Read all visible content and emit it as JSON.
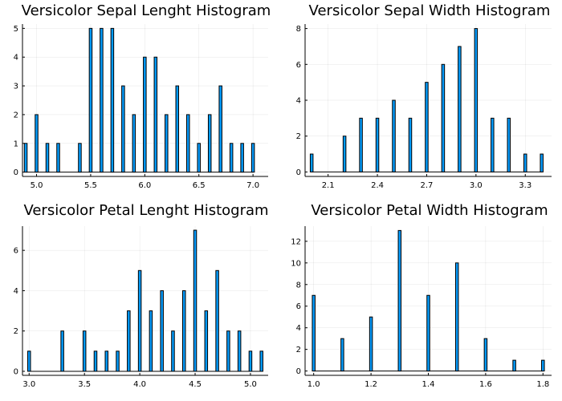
{
  "chart_data": [
    {
      "type": "bar",
      "title": "Versicolor Sepal Lenght Histogram",
      "x": [
        4.9,
        5.0,
        5.1,
        5.2,
        5.4,
        5.5,
        5.6,
        5.7,
        5.8,
        5.9,
        6.0,
        6.1,
        6.2,
        6.3,
        6.4,
        6.5,
        6.6,
        6.7,
        6.8,
        6.9,
        7.0
      ],
      "values": [
        1,
        2,
        1,
        1,
        1,
        5,
        5,
        5,
        3,
        2,
        4,
        4,
        2,
        3,
        2,
        1,
        2,
        3,
        1,
        1,
        1
      ],
      "xlim": [
        4.87,
        7.14
      ],
      "ylim": [
        -0.15,
        5.15
      ],
      "xticks": [
        5.0,
        5.5,
        6.0,
        6.5,
        7.0
      ],
      "xtick_labels": [
        "5.0",
        "5.5",
        "6.0",
        "6.5",
        "7.0"
      ],
      "yticks": [
        0,
        1,
        2,
        3,
        4,
        5
      ],
      "ytick_labels": [
        "0",
        "1",
        "2",
        "3",
        "4",
        "5"
      ],
      "grid": true,
      "color": "#009af9"
    },
    {
      "type": "bar",
      "title": "Versicolor Sepal Width Histogram",
      "x": [
        2.0,
        2.2,
        2.3,
        2.4,
        2.5,
        2.6,
        2.7,
        2.8,
        2.9,
        3.0,
        3.1,
        3.2,
        3.3,
        3.4
      ],
      "values": [
        1,
        2,
        3,
        3,
        4,
        3,
        5,
        6,
        7,
        8,
        3,
        3,
        1,
        1
      ],
      "xlim": [
        1.96,
        3.46
      ],
      "ylim": [
        -0.25,
        8.25
      ],
      "xticks": [
        2.1,
        2.4,
        2.7,
        3.0,
        3.3
      ],
      "xtick_labels": [
        "2.1",
        "2.4",
        "2.7",
        "3.0",
        "3.3"
      ],
      "yticks": [
        0,
        2,
        4,
        6,
        8
      ],
      "ytick_labels": [
        "0",
        "2",
        "4",
        "6",
        "8"
      ],
      "grid": true,
      "color": "#009af9"
    },
    {
      "type": "bar",
      "title": "Versicolor Petal Lenght Histogram",
      "x": [
        3.0,
        3.3,
        3.5,
        3.6,
        3.7,
        3.8,
        3.9,
        4.0,
        4.1,
        4.2,
        4.3,
        4.4,
        4.5,
        4.6,
        4.7,
        4.8,
        4.9,
        5.0,
        5.1
      ],
      "values": [
        1,
        2,
        2,
        1,
        1,
        1,
        3,
        5,
        3,
        4,
        2,
        4,
        7,
        3,
        5,
        2,
        2,
        1,
        1
      ],
      "xlim": [
        2.94,
        5.16
      ],
      "ylim": [
        -0.2,
        7.2
      ],
      "xticks": [
        3.0,
        3.5,
        4.0,
        4.5,
        5.0
      ],
      "xtick_labels": [
        "3.0",
        "3.5",
        "4.0",
        "4.5",
        "5.0"
      ],
      "yticks": [
        0,
        2,
        4,
        6
      ],
      "ytick_labels": [
        "0",
        "2",
        "4",
        "6"
      ],
      "grid": true,
      "color": "#009af9"
    },
    {
      "type": "bar",
      "title": "Versicolor Petal Width Histogram",
      "x": [
        1.0,
        1.1,
        1.2,
        1.3,
        1.4,
        1.5,
        1.6,
        1.7,
        1.8
      ],
      "values": [
        7,
        3,
        5,
        13,
        7,
        10,
        3,
        1,
        1
      ],
      "xlim": [
        0.97,
        1.83
      ],
      "ylim": [
        -0.4,
        13.4
      ],
      "xticks": [
        1.0,
        1.2,
        1.4,
        1.6,
        1.8
      ],
      "xtick_labels": [
        "1.0",
        "1.2",
        "1.4",
        "1.6",
        "1.8"
      ],
      "yticks": [
        0,
        2,
        4,
        6,
        8,
        10,
        12
      ],
      "ytick_labels": [
        "0",
        "2",
        "4",
        "6",
        "8",
        "10",
        "12"
      ],
      "grid": true,
      "color": "#009af9"
    }
  ]
}
